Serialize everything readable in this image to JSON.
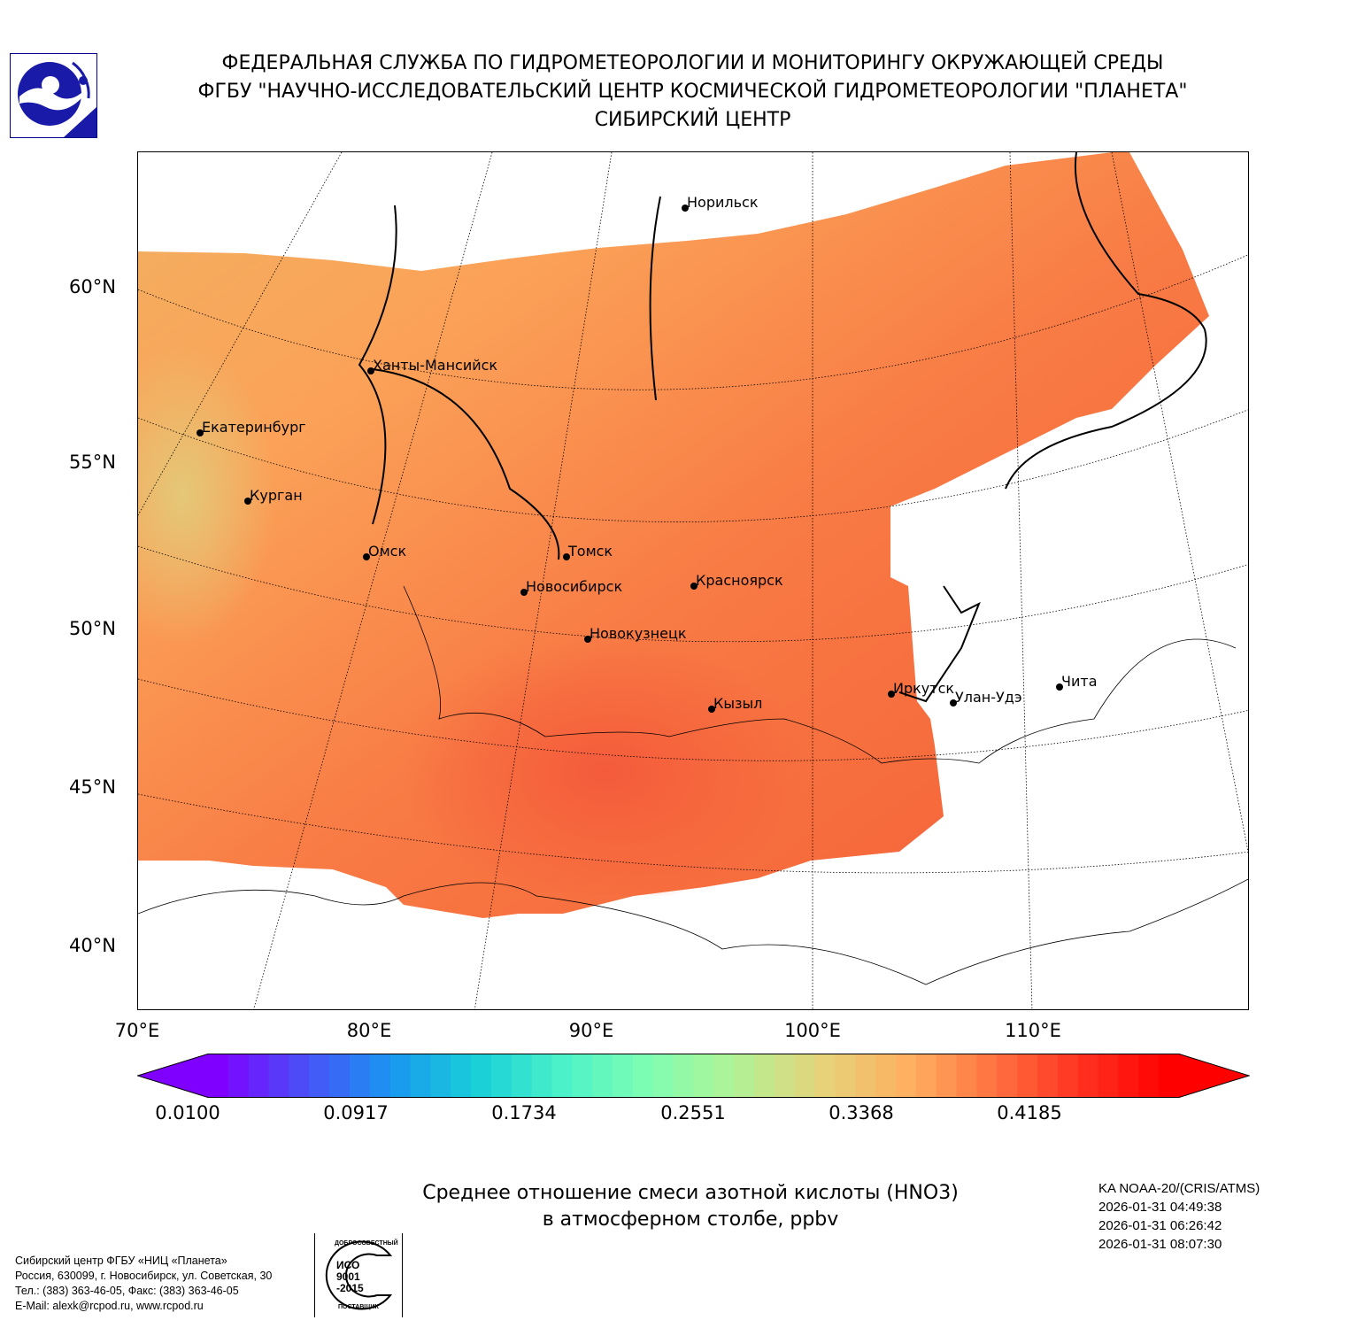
{
  "header": {
    "line1": "ФЕДЕРАЛЬНАЯ СЛУЖБА ПО ГИДРОМЕТЕОРОЛОГИИ И МОНИТОРИНГУ ОКРУЖАЮЩЕЙ СРЕДЫ",
    "line2": "ФГБУ \"НАУЧНО-ИССЛЕДОВАТЕЛЬСКИЙ ЦЕНТР КОСМИЧЕСКОЙ ГИДРОМЕТЕОРОЛОГИИ \"ПЛАНЕТА\"",
    "line3": "СИБИРСКИЙ ЦЕНТР"
  },
  "map": {
    "lat_labels": [
      "60°N",
      "55°N",
      "50°N",
      "45°N",
      "40°N"
    ],
    "lon_labels": [
      "70°E",
      "80°E",
      "90°E",
      "100°E",
      "110°E"
    ],
    "cities": [
      "Норильск",
      "Ханты-Мансийск",
      "Екатеринбург",
      "Курган",
      "Омск",
      "Томск",
      "Новосибирск",
      "Красноярск",
      "Новокузнецк",
      "Кызыл",
      "Иркутск",
      "Улан-Удэ",
      "Чита"
    ]
  },
  "colorbar": {
    "ticks": [
      "0.0100",
      "0.0917",
      "0.1734",
      "0.2551",
      "0.3368",
      "0.4185"
    ],
    "colors": [
      "#7f00ff",
      "#4a50f8",
      "#1996f0",
      "#19d0d8",
      "#4cf2c8",
      "#80feb2",
      "#b2f295",
      "#e6d27a",
      "#ffb060",
      "#ff7040",
      "#ff3020",
      "#ff0000"
    ]
  },
  "caption": {
    "line1": "Среднее отношение смеси азотной кислоты (HNO3)",
    "line2": "в атмосферном столбе, ppbv"
  },
  "satellite": {
    "name": "KA NOAA-20/(CRIS/ATMS)",
    "times": [
      "2026-01-31 04:49:38",
      "2026-01-31 06:26:42",
      "2026-01-31 08:07:30"
    ]
  },
  "footer": {
    "lines": [
      "Сибирский центр ФГБУ «НИЦ «Планета»",
      "Россия, 630099, г. Новосибирск, ул. Советская, 30",
      "Тел.: (383) 363-46-05, Факс: (383) 363-46-05",
      "E-Mail: alexk@rcpod.ru, www.rcpod.ru"
    ],
    "iso_badge": [
      "ДОБРОСОВЕСТНЫЙ",
      "ИСО",
      "9001",
      "-2015",
      "ПОСТАВЩИК"
    ]
  }
}
